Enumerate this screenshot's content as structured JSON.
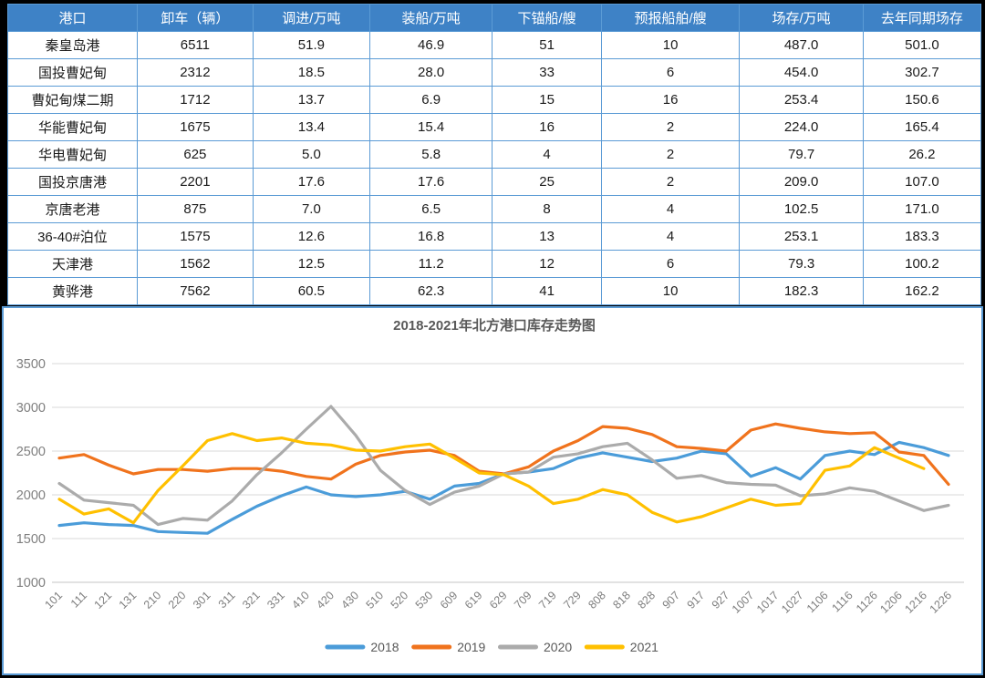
{
  "table": {
    "headers": [
      "港口",
      "卸车（辆）",
      "调进/万吨",
      "装船/万吨",
      "下锚船/艘",
      "预报船舶/艘",
      "场存/万吨",
      "去年同期场存"
    ],
    "col_widths_pct": [
      13.3,
      11.9,
      12.0,
      12.6,
      11.2,
      14.2,
      12.7,
      12.1
    ],
    "rows": [
      {
        "port": "秦皇岛港",
        "values": [
          "6511",
          "51.9",
          "46.9",
          "51",
          "10",
          "487.0",
          "501.0"
        ]
      },
      {
        "port": "国投曹妃甸",
        "values": [
          "2312",
          "18.5",
          "28.0",
          "33",
          "6",
          "454.0",
          "302.7"
        ]
      },
      {
        "port": "曹妃甸煤二期",
        "values": [
          "1712",
          "13.7",
          "6.9",
          "15",
          "16",
          "253.4",
          "150.6"
        ]
      },
      {
        "port": "华能曹妃甸",
        "values": [
          "1675",
          "13.4",
          "15.4",
          "16",
          "2",
          "224.0",
          "165.4"
        ]
      },
      {
        "port": "华电曹妃甸",
        "values": [
          "625",
          "5.0",
          "5.8",
          "4",
          "2",
          "79.7",
          "26.2"
        ]
      },
      {
        "port": "国投京唐港",
        "values": [
          "2201",
          "17.6",
          "17.6",
          "25",
          "2",
          "209.0",
          "107.0"
        ]
      },
      {
        "port": "京唐老港",
        "values": [
          "875",
          "7.0",
          "6.5",
          "8",
          "4",
          "102.5",
          "171.0"
        ]
      },
      {
        "port": "36-40#泊位",
        "values": [
          "1575",
          "12.6",
          "16.8",
          "13",
          "4",
          "253.1",
          "183.3"
        ]
      },
      {
        "port": "天津港",
        "values": [
          "1562",
          "12.5",
          "11.2",
          "12",
          "6",
          "79.3",
          "100.2"
        ]
      },
      {
        "port": "黄骅港",
        "values": [
          "7562",
          "60.5",
          "62.3",
          "41",
          "10",
          "182.3",
          "162.2"
        ]
      }
    ]
  },
  "chart_data": {
    "type": "line",
    "title": "2018-2021年北方港口库存走势图",
    "ylim": [
      1000,
      3500
    ],
    "y_ticks": [
      1000,
      1500,
      2000,
      2500,
      3000,
      3500
    ],
    "grid": true,
    "legend_position": "bottom",
    "categories": [
      "101",
      "111",
      "121",
      "131",
      "210",
      "220",
      "301",
      "311",
      "321",
      "331",
      "410",
      "420",
      "430",
      "510",
      "520",
      "530",
      "609",
      "619",
      "629",
      "709",
      "719",
      "729",
      "808",
      "818",
      "828",
      "907",
      "917",
      "927",
      "1007",
      "1017",
      "1027",
      "1106",
      "1116",
      "1126",
      "1206",
      "1216",
      "1226"
    ],
    "series": [
      {
        "name": "2018",
        "color": "#4B9CD9",
        "values": [
          1650,
          1680,
          1660,
          1650,
          1580,
          1570,
          1560,
          1720,
          1870,
          1990,
          2090,
          2000,
          1980,
          2000,
          2040,
          1950,
          2100,
          2130,
          2240,
          2260,
          2300,
          2420,
          2480,
          2430,
          2380,
          2420,
          2500,
          2470,
          2210,
          2310,
          2180,
          2450,
          2500,
          2460,
          2600,
          2540,
          2450
        ]
      },
      {
        "name": "2019",
        "color": "#F0731D",
        "values": [
          2420,
          2460,
          2340,
          2240,
          2290,
          2290,
          2270,
          2300,
          2300,
          2270,
          2210,
          2180,
          2350,
          2450,
          2490,
          2510,
          2450,
          2270,
          2240,
          2320,
          2500,
          2620,
          2780,
          2760,
          2690,
          2550,
          2530,
          2500,
          2740,
          2810,
          2760,
          2720,
          2700,
          2710,
          2490,
          2450,
          2120
        ]
      },
      {
        "name": "2020",
        "color": "#ABABAB",
        "values": [
          2130,
          1940,
          1910,
          1880,
          1660,
          1730,
          1710,
          1930,
          2230,
          2480,
          2750,
          3010,
          2680,
          2280,
          2050,
          1890,
          2030,
          2100,
          2240,
          2260,
          2430,
          2470,
          2550,
          2590,
          2400,
          2190,
          2220,
          2140,
          2120,
          2110,
          1990,
          2010,
          2080,
          2040,
          1930,
          1820,
          1880
        ]
      },
      {
        "name": "2021",
        "color": "#FFC000",
        "values": [
          1950,
          1780,
          1840,
          1680,
          2050,
          2330,
          2620,
          2700,
          2620,
          2650,
          2590,
          2570,
          2510,
          2500,
          2550,
          2580,
          2420,
          2250,
          2230,
          2100,
          1900,
          1950,
          2060,
          2000,
          1800,
          1690,
          1750,
          1850,
          1950,
          1880,
          1900,
          2280,
          2330,
          2540,
          2420,
          2300
        ]
      }
    ]
  },
  "colors": {
    "header_bg": "#3E82C6",
    "table_border": "#5B9BD5",
    "panel_border": "#5B9BD5",
    "gridline": "#D9D9D9",
    "axis_text": "#7F7F7F",
    "title_text": "#595959",
    "background": "#000000"
  }
}
